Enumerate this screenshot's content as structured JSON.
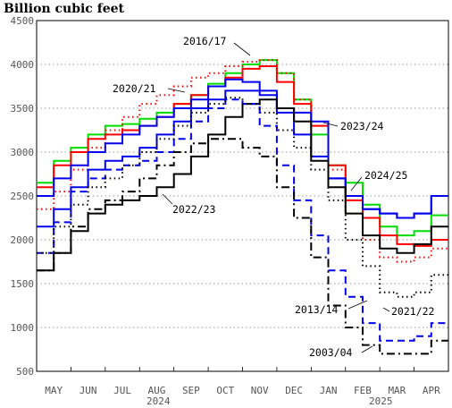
{
  "chart_data": {
    "type": "line",
    "title": "Billion cubic feet",
    "ylim": [
      500,
      4500
    ],
    "y_ticks": [
      500,
      1000,
      1500,
      2000,
      2500,
      3000,
      3500,
      4000,
      4500
    ],
    "grid": "horizontal dotted",
    "x_tick_labels": [
      "MAY",
      "JUN",
      "JUL",
      "AUG",
      "SEP",
      "OCT",
      "NOV",
      "DEC",
      "JAN",
      "FEB",
      "MAR",
      "APR"
    ],
    "x_year_labels": [
      {
        "label": "2024",
        "at": "SEP"
      },
      {
        "label": "2025",
        "at": "FEB"
      }
    ],
    "series_style_notes": "2024/25 and 2023/24 solid blue; 2016/17 solid green; 2020/21 dotted red; 2022/23 solid black; 2021/22 dashed blue; 2013/14 dotted black; 2003/04 dash-dot black; additional solid red and black curves",
    "annotations": [
      "2016/17",
      "2020/21",
      "2023/24",
      "2024/25",
      "2022/23",
      "2013/14",
      "2021/22",
      "2003/04"
    ],
    "series": [
      {
        "name": "2016/17",
        "color": "#00dd00",
        "dash": "solid",
        "values": [
          2650,
          2900,
          3050,
          3200,
          3300,
          3320,
          3380,
          3450,
          3550,
          3650,
          3780,
          3900,
          4000,
          4050,
          3900,
          3600,
          3200,
          2850,
          2650,
          2400,
          2150,
          2050,
          2100,
          2280
        ]
      },
      {
        "name": "",
        "color": "#ff0000",
        "dash": "solid",
        "values": [
          2600,
          2850,
          3000,
          3150,
          3200,
          3250,
          3300,
          3400,
          3550,
          3650,
          3750,
          3850,
          3950,
          3980,
          3800,
          3550,
          3300,
          2850,
          2450,
          2250,
          2050,
          1950,
          1930,
          2000
        ]
      },
      {
        "name": "2020/21",
        "color": "#ff0000",
        "dash": "dotted",
        "values": [
          2350,
          2550,
          2800,
          3050,
          3250,
          3400,
          3550,
          3650,
          3750,
          3850,
          3900,
          3980,
          4030,
          4050,
          3900,
          3600,
          3300,
          2800,
          2300,
          2000,
          1800,
          1750,
          1800,
          1900
        ]
      },
      {
        "name": "2023/24",
        "color": "#0000ee",
        "dash": "solid",
        "values": [
          2500,
          2700,
          2850,
          3000,
          3100,
          3200,
          3300,
          3400,
          3500,
          3600,
          3750,
          3830,
          3800,
          3700,
          3500,
          3450,
          3350,
          2700,
          2500,
          2350,
          2300,
          2250,
          2300,
          2500
        ]
      },
      {
        "name": "2024/25",
        "color": "#0000ee",
        "dash": "solid",
        "values": [
          2150,
          2350,
          2600,
          2800,
          2900,
          2950,
          3050,
          3200,
          3350,
          3500,
          3600,
          3700,
          3700,
          3650,
          3450,
          3200,
          2950,
          2700,
          2500,
          2350,
          2300,
          2250,
          2300,
          2500
        ]
      },
      {
        "name": "2022/23",
        "color": "#000000",
        "dash": "solid",
        "values": [
          1650,
          1850,
          2100,
          2300,
          2400,
          2450,
          2500,
          2600,
          2750,
          2950,
          3200,
          3400,
          3550,
          3600,
          3500,
          3350,
          2900,
          2600,
          2300,
          2050,
          1900,
          1850,
          1950,
          2150
        ]
      },
      {
        "name": "2021/22",
        "color": "#0000ee",
        "dash": "dashed",
        "values": [
          1850,
          2200,
          2550,
          2700,
          2800,
          2850,
          2900,
          3000,
          3150,
          3350,
          3500,
          3600,
          3550,
          3300,
          2850,
          2450,
          2050,
          1650,
          1350,
          1050,
          850,
          850,
          900,
          1050
        ]
      },
      {
        "name": "2013/14",
        "color": "#000000",
        "dash": "dotted",
        "values": [
          1850,
          2150,
          2400,
          2600,
          2700,
          2850,
          3000,
          3150,
          3300,
          3450,
          3550,
          3620,
          3550,
          3450,
          3250,
          3050,
          2800,
          2450,
          2000,
          1700,
          1400,
          1350,
          1400,
          1600
        ]
      },
      {
        "name": "2003/04",
        "color": "#000000",
        "dash": "dashdot",
        "values": [
          1650,
          1850,
          2150,
          2350,
          2450,
          2550,
          2700,
          2850,
          3000,
          3100,
          3150,
          3150,
          3050,
          2950,
          2600,
          2250,
          1800,
          1250,
          1000,
          800,
          700,
          700,
          700,
          850
        ]
      }
    ]
  },
  "annotation_labels": {
    "a1617": "2016/17",
    "a2021": "2020/21",
    "a2324": "2023/24",
    "a2425": "2024/25",
    "a2223": "2022/23",
    "a1314": "2013/14",
    "a2122": "2021/22",
    "a0304": "2003/04"
  },
  "year_labels": {
    "y2024": "2024",
    "y2025": "2025"
  }
}
